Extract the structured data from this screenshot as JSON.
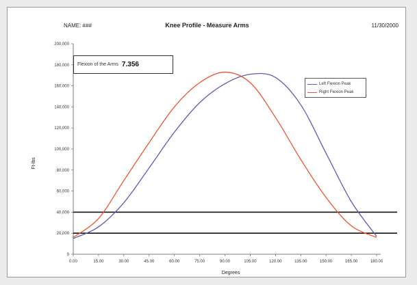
{
  "header": {
    "left_label": "NAME: ###",
    "title": "Knee Profile - Measure Arms",
    "date": "11/30/2000"
  },
  "ratio_box": {
    "label": "Flexion of the Arms",
    "value": "7.356"
  },
  "chart_data": {
    "type": "line",
    "title": "Knee Profile - Measure Arms",
    "xlabel": "Degrees",
    "ylabel": "Ft-lbs",
    "x": [
      0,
      15,
      30,
      45,
      60,
      75,
      90,
      105,
      120,
      135,
      150,
      165,
      180
    ],
    "x_tick_labels": [
      "0.00",
      "15.00",
      "30.00",
      "45.00",
      "60.00",
      "75.00",
      "90.00",
      "105.00",
      "120.00",
      "135.00",
      "150.00",
      "165.00",
      "180.00"
    ],
    "y_ticks": [
      0,
      20000,
      40000,
      60000,
      80000,
      100000,
      120000,
      140000,
      160000,
      180000,
      200000
    ],
    "y_tick_labels": [
      "0",
      "20,000",
      "40,000",
      "60,000",
      "80,000",
      "100,000",
      "120,000",
      "140,000",
      "160,000",
      "180,000",
      "200,000"
    ],
    "ylim": [
      0,
      200000
    ],
    "xlim": [
      0,
      180
    ],
    "series": [
      {
        "name": "Left Flexion Peak",
        "color": "#5b5bb8",
        "values": [
          15000,
          26000,
          49000,
          82000,
          116000,
          144000,
          162000,
          171000,
          168000,
          142000,
          96000,
          50000,
          17000
        ]
      },
      {
        "name": "Right Flexion Peak",
        "color": "#f0542a",
        "values": [
          16000,
          34000,
          70000,
          106000,
          140000,
          163000,
          173000,
          163000,
          130000,
          90000,
          54000,
          27000,
          16000
        ]
      }
    ],
    "reference_lines": [
      20000,
      40000
    ],
    "grid": false,
    "legend_position": "top-right"
  }
}
